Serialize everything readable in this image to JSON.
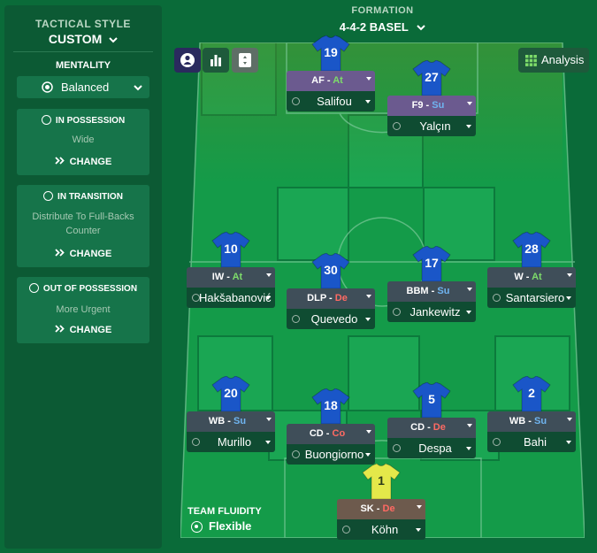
{
  "sidebar": {
    "tactical_style_label": "TACTICAL STYLE",
    "tactical_style_value": "CUSTOM",
    "mentality_label": "MENTALITY",
    "mentality_value": "Balanced",
    "cards": [
      {
        "title": "IN POSSESSION",
        "desc": "Wide",
        "change": "CHANGE",
        "icon": "football-icon"
      },
      {
        "title": "IN TRANSITION",
        "desc": "Distribute To Full-Backs Counter",
        "change": "CHANGE",
        "icon": "transition-icon"
      },
      {
        "title": "OUT OF POSSESSION",
        "desc": "More Urgent",
        "change": "CHANGE",
        "icon": "defense-icon"
      }
    ]
  },
  "header": {
    "formation_label": "FORMATION",
    "formation_value": "4-4-2 BASEL"
  },
  "toolbar": {
    "analysis_label": "Analysis"
  },
  "team_fluidity": {
    "label": "TEAM FLUIDITY",
    "value": "Flexible"
  },
  "players": [
    {
      "number": "19",
      "role": "AF",
      "duty": "At",
      "name": "Salifou"
    },
    {
      "number": "27",
      "role": "F9",
      "duty": "Su",
      "name": "Yalçın"
    },
    {
      "number": "10",
      "role": "IW",
      "duty": "At",
      "name": "Hakšabanović"
    },
    {
      "number": "30",
      "role": "DLP",
      "duty": "De",
      "name": "Quevedo"
    },
    {
      "number": "17",
      "role": "BBM",
      "duty": "Su",
      "name": "Jankewitz"
    },
    {
      "number": "28",
      "role": "W",
      "duty": "At",
      "name": "Santarsiero"
    },
    {
      "number": "20",
      "role": "WB",
      "duty": "Su",
      "name": "Murillo"
    },
    {
      "number": "18",
      "role": "CD",
      "duty": "Co",
      "name": "Buongiorno"
    },
    {
      "number": "5",
      "role": "CD",
      "duty": "De",
      "name": "Despa"
    },
    {
      "number": "2",
      "role": "WB",
      "duty": "Su",
      "name": "Bahi"
    },
    {
      "number": "1",
      "role": "SK",
      "duty": "De",
      "name": "Köhn"
    }
  ],
  "colors": {
    "background": "#0a6b39",
    "sidebar": "#0c5a34",
    "shirt_outfield": "#1a56c8",
    "shirt_keeper": "#e4e84a",
    "duty_attack": "#7ddc6a",
    "duty_support": "#6fb4f0",
    "duty_defend": "#ff6a63"
  }
}
